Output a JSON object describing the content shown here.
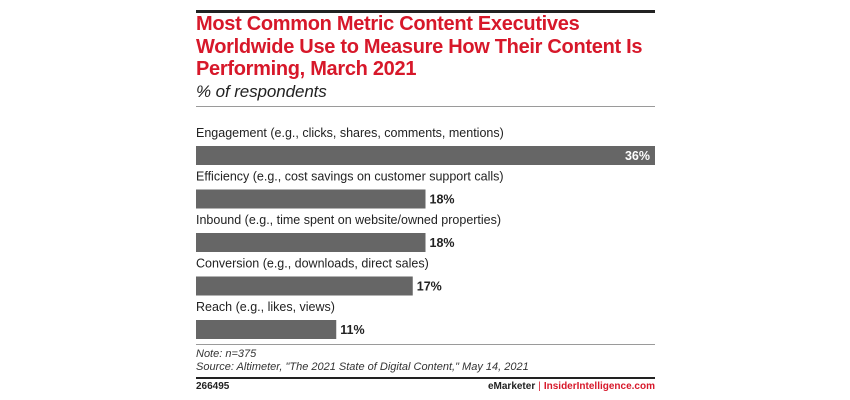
{
  "header": {
    "title": "Most Common Metric Content Executives Worldwide Use to Measure How Their Content Is Performing, March 2021",
    "subtitle": "% of respondents"
  },
  "footer": {
    "note": "Note: n=375",
    "source": "Source: Altimeter, \"The 2021 State of Digital Content,\" May 14, 2021",
    "chart_id": "266495",
    "brand_left": "eMarketer",
    "brand_sep": "|",
    "brand_right": "InsiderIntelligence.com"
  },
  "colors": {
    "title": "#d7182a",
    "bar": "#666666",
    "label_inside": "#ffffff",
    "label_outside": "#222222"
  },
  "chart_data": {
    "type": "bar",
    "orientation": "horizontal",
    "categories": [
      "Engagement (e.g., clicks, shares, comments, mentions)",
      "Efficiency (e.g., cost savings on customer support calls)",
      "Inbound (e.g., time spent on website/owned properties)",
      "Conversion (e.g., downloads, direct sales)",
      "Reach (e.g., likes, views)"
    ],
    "values": [
      36,
      18,
      18,
      17,
      11
    ],
    "value_labels": [
      "36%",
      "18%",
      "18%",
      "17%",
      "11%"
    ],
    "title": "Most Common Metric Content Executives Worldwide Use to Measure How Their Content Is Performing, March 2021",
    "xlabel": "",
    "ylabel": "",
    "xlim": [
      0,
      36
    ],
    "grid": false,
    "legend": "none"
  }
}
